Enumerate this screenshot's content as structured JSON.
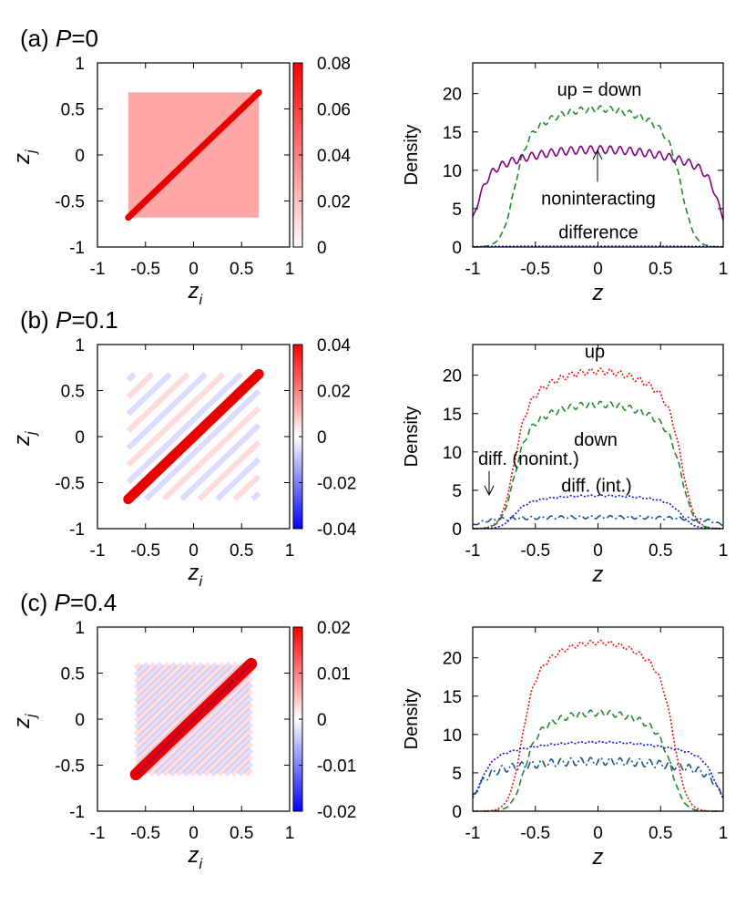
{
  "colors": {
    "up": "#ee1111",
    "down": "#22882e",
    "noninteracting": "#800080",
    "difference": "#1111dd",
    "diff_nonint": "#17508a",
    "diag": "#e80000",
    "cb_pos": "#ff0000",
    "cb_neg": "#0000ff"
  },
  "chart_data": [
    {
      "type": "heatmap",
      "panel_tag": "(a) ",
      "panel_var": "P",
      "panel_eq": "=0",
      "xlabel_base": "z",
      "xlabel_sub": "i",
      "ylabel_base": "z",
      "ylabel_sub": "j",
      "xlim": [
        -1,
        1
      ],
      "ylim": [
        -1,
        1
      ],
      "x_ticks": [
        "-1",
        "-0.5",
        "0",
        "0.5",
        "1"
      ],
      "y_ticks": [
        "1",
        "0.5",
        "0",
        "-0.5",
        "-1"
      ],
      "colorbar_min": 0,
      "colorbar_max": 0.08,
      "colorbar_ticks": [
        "0.08",
        "0.06",
        "0.04",
        "0.02",
        "0"
      ],
      "diagonal_peak": 0.08,
      "background_level": 0.015,
      "support_half_width": 0.68
    },
    {
      "type": "line",
      "xlabel": "z",
      "ylabel": "Density",
      "xlim": [
        -1,
        1
      ],
      "ylim": [
        0,
        24
      ],
      "x_ticks": [
        "-1",
        "-0.5",
        "0",
        "0.5",
        "1"
      ],
      "y_ticks": [
        "20",
        "15",
        "10",
        "5",
        "0"
      ],
      "series": [
        {
          "name": "up = down",
          "style": "dashed",
          "color": "down",
          "edge": 0.68,
          "peak": 18,
          "ripple": 0.4
        },
        {
          "name": "noninteracting",
          "style": "solid",
          "color": "noninteracting",
          "edge": 0.98,
          "peak": 12.7,
          "ripple": 0.5
        },
        {
          "name": "difference",
          "style": "dotted",
          "color": "difference",
          "edge": 1.0,
          "peak": 0.1,
          "ripple": 0
        }
      ],
      "annotations": {
        "up_down": "up = down",
        "noninteracting": "noninteracting",
        "difference": "difference"
      }
    },
    {
      "type": "heatmap",
      "panel_tag": "(b) ",
      "panel_var": "P",
      "panel_eq": "=0.1",
      "xlabel_base": "z",
      "xlabel_sub": "i",
      "ylabel_base": "z",
      "ylabel_sub": "j",
      "xlim": [
        -1,
        1
      ],
      "ylim": [
        -1,
        1
      ],
      "x_ticks": [
        "-1",
        "-0.5",
        "0",
        "0.5",
        "1"
      ],
      "y_ticks": [
        "1",
        "0.5",
        "0",
        "-0.5",
        "-1"
      ],
      "colorbar_min": -0.04,
      "colorbar_max": 0.04,
      "colorbar_ticks": [
        "0.04",
        "0.02",
        "0",
        "-0.02",
        "-0.04"
      ],
      "diagonal_peak": 0.04,
      "background_level": 0.004,
      "support_half_width": 0.68
    },
    {
      "type": "line",
      "xlabel": "z",
      "ylabel": "Density",
      "xlim": [
        -1,
        1
      ],
      "ylim": [
        0,
        24
      ],
      "x_ticks": [
        "-1",
        "-0.5",
        "0",
        "0.5",
        "1"
      ],
      "y_ticks": [
        "20",
        "15",
        "10",
        "5",
        "0"
      ],
      "series": [
        {
          "name": "up",
          "style": "dotted",
          "color": "up",
          "edge": 0.68,
          "peak": 20.5,
          "ripple": 0.4
        },
        {
          "name": "down",
          "style": "dashed",
          "color": "down",
          "edge": 0.68,
          "peak": 16.2,
          "ripple": 0.4
        },
        {
          "name": "diff. (int.)",
          "style": "dotted",
          "color": "difference",
          "edge": 0.68,
          "peak": 4.3,
          "ripple": 0.1
        },
        {
          "name": "diff. (nonint.)",
          "style": "dashdot",
          "color": "diff_nonint",
          "edge": 0.98,
          "peak": 1.5,
          "ripple": 0.2
        }
      ],
      "annotations": {
        "up": "up",
        "down": "down",
        "diff_int": "diff. (int.)",
        "diff_nonint": "diff. (nonint.)"
      }
    },
    {
      "type": "heatmap",
      "panel_tag": "(c) ",
      "panel_var": "P",
      "panel_eq": "=0.4",
      "xlabel_base": "z",
      "xlabel_sub": "i",
      "ylabel_base": "z",
      "ylabel_sub": "j",
      "xlim": [
        -1,
        1
      ],
      "ylim": [
        -1,
        1
      ],
      "x_ticks": [
        "-1",
        "-0.5",
        "0",
        "0.5",
        "1"
      ],
      "y_ticks": [
        "1",
        "0.5",
        "0",
        "-0.5",
        "-1"
      ],
      "colorbar_min": -0.02,
      "colorbar_max": 0.02,
      "colorbar_ticks": [
        "0.02",
        "0.01",
        "0",
        "-0.01",
        "-0.02"
      ],
      "diagonal_peak": 0.02,
      "background_level": 0.002,
      "support_half_width": 0.6
    },
    {
      "type": "line",
      "xlabel": "z",
      "ylabel": "Density",
      "xlim": [
        -1,
        1
      ],
      "ylim": [
        0,
        24
      ],
      "x_ticks": [
        "-1",
        "-0.5",
        "0",
        "0.5",
        "1"
      ],
      "y_ticks": [
        "20",
        "15",
        "10",
        "5",
        "0"
      ],
      "series": [
        {
          "name": "up",
          "style": "dotted",
          "color": "up",
          "edge": 0.62,
          "peak": 22,
          "ripple": 0.3
        },
        {
          "name": "down",
          "style": "dashed",
          "color": "down",
          "edge": 0.6,
          "peak": 12.8,
          "ripple": 0.4
        },
        {
          "name": "diff. (int.)",
          "style": "dotted",
          "color": "difference",
          "edge": 0.95,
          "peak": 9,
          "ripple": 0.1
        },
        {
          "name": "diff. (nonint.)",
          "style": "dashdot",
          "color": "diff_nonint",
          "edge": 0.98,
          "peak": 6.5,
          "ripple": 0.5
        }
      ]
    }
  ]
}
